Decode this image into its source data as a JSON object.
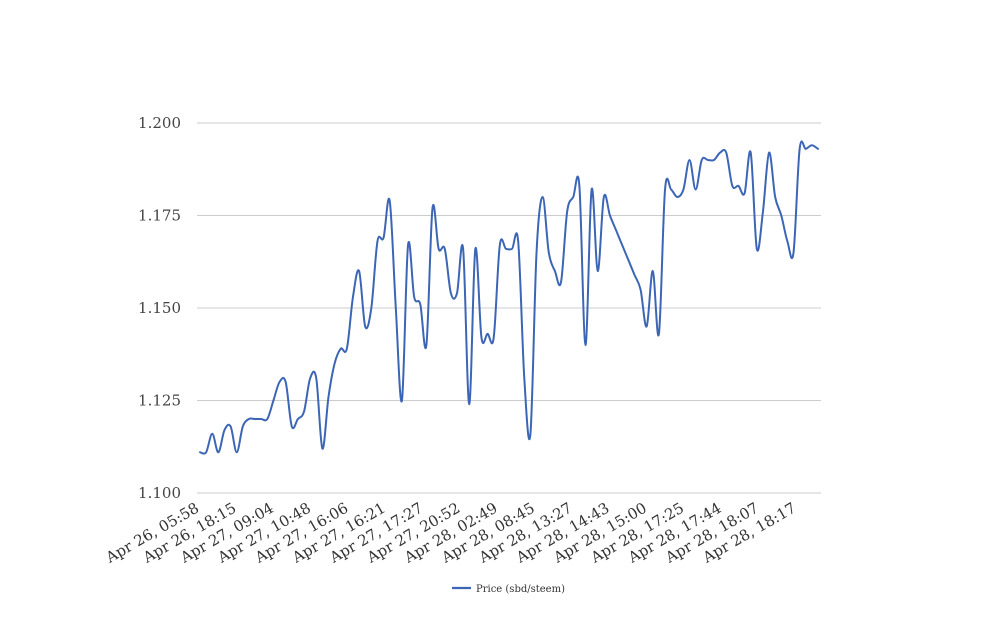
{
  "chart_data": {
    "type": "line",
    "title": "",
    "xlabel": "",
    "ylabel": "",
    "ylim": [
      1.1,
      1.2
    ],
    "yticks": [
      "1.100",
      "1.125",
      "1.150",
      "1.175",
      "1.200"
    ],
    "grid": "horizontal",
    "legend_position": "bottom",
    "xtick_labels": [
      "Apr 26, 05:58",
      "Apr 26, 18:15",
      "Apr 27, 09:04",
      "Apr 27, 10:48",
      "Apr 27, 16:06",
      "Apr 27, 16:21",
      "Apr 27, 17:27",
      "Apr 27, 20:52",
      "Apr 28, 02:49",
      "Apr 28, 08:45",
      "Apr 28, 13:27",
      "Apr 28, 14:43",
      "Apr 28, 15:00",
      "Apr 28, 17:25",
      "Apr 28, 17:44",
      "Apr 28, 18:07",
      "Apr 28, 18:17"
    ],
    "series": [
      {
        "name": "Price (sbd/steem)",
        "color": "#3c66b5",
        "values": [
          1.111,
          1.111,
          1.116,
          1.111,
          1.117,
          1.118,
          1.111,
          1.118,
          1.12,
          1.12,
          1.12,
          1.12,
          1.125,
          1.13,
          1.13,
          1.118,
          1.12,
          1.122,
          1.131,
          1.131,
          1.112,
          1.126,
          1.135,
          1.139,
          1.139,
          1.153,
          1.16,
          1.145,
          1.15,
          1.168,
          1.169,
          1.179,
          1.15,
          1.125,
          1.167,
          1.153,
          1.151,
          1.14,
          1.177,
          1.166,
          1.166,
          1.154,
          1.154,
          1.166,
          1.124,
          1.166,
          1.142,
          1.143,
          1.142,
          1.167,
          1.166,
          1.166,
          1.168,
          1.131,
          1.116,
          1.165,
          1.18,
          1.165,
          1.16,
          1.157,
          1.176,
          1.18,
          1.183,
          1.14,
          1.182,
          1.16,
          1.18,
          1.175,
          1.171,
          1.167,
          1.163,
          1.159,
          1.155,
          1.145,
          1.16,
          1.143,
          1.182,
          1.182,
          1.18,
          1.182,
          1.19,
          1.182,
          1.19,
          1.19,
          1.19,
          1.192,
          1.192,
          1.183,
          1.183,
          1.181,
          1.192,
          1.166,
          1.176,
          1.192,
          1.18,
          1.175,
          1.168,
          1.165,
          1.193,
          1.193,
          1.194,
          1.193
        ]
      }
    ]
  }
}
